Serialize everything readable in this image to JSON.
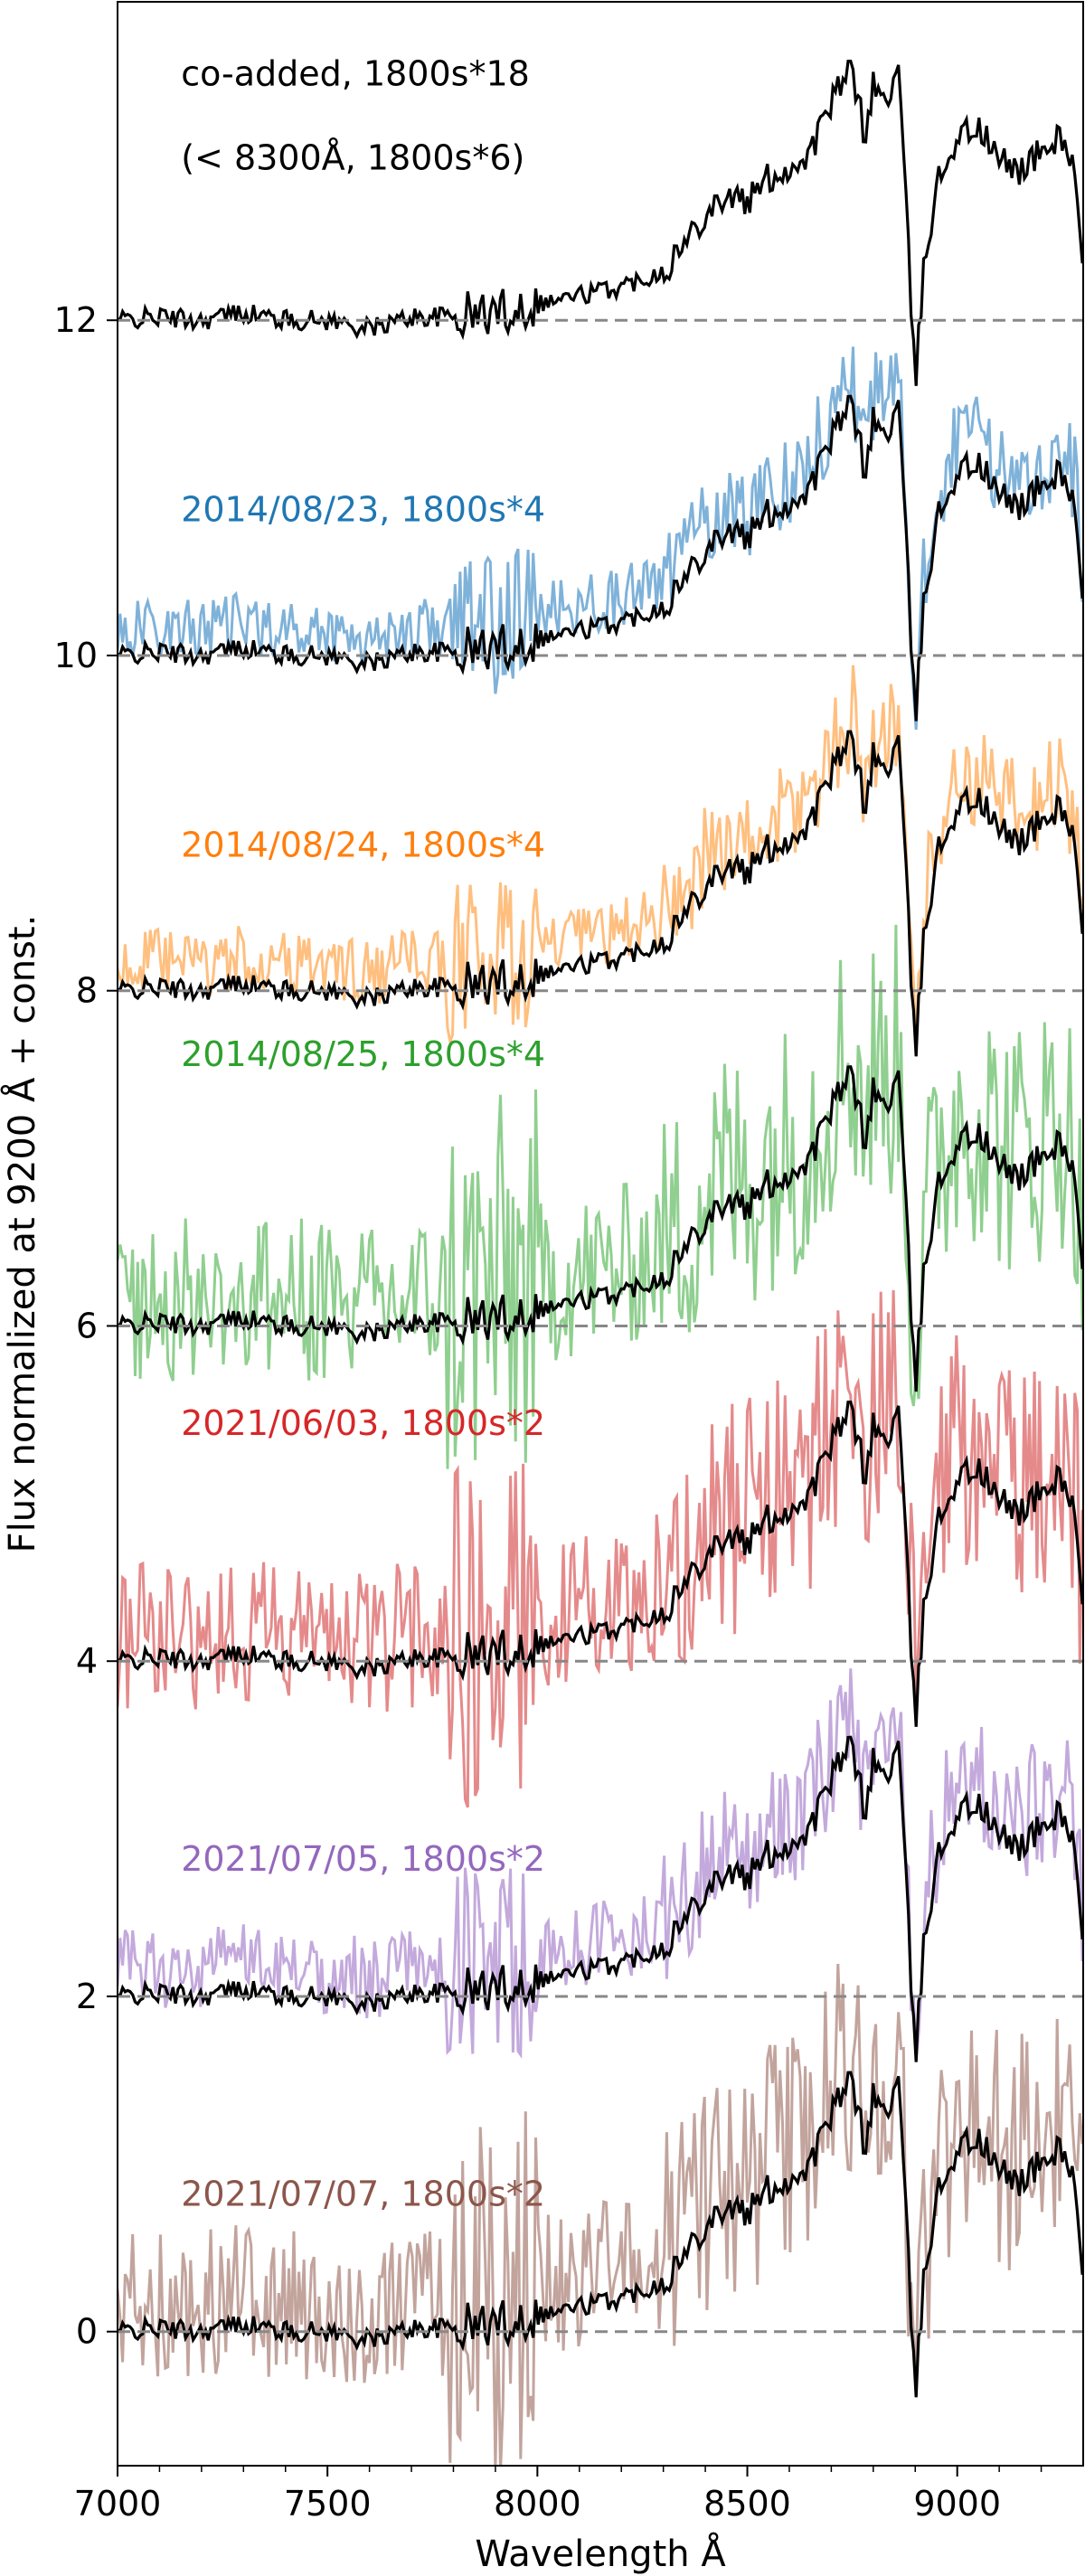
{
  "chart_data": {
    "type": "line",
    "title": "",
    "xlabel": "Wavelength Å",
    "ylabel": "Flux normalized at 9200 Å + const.",
    "xlim": [
      7000,
      9300
    ],
    "ylim": [
      -0.8,
      13.9
    ],
    "x_ticks": [
      7000,
      7500,
      8000,
      8500,
      9000
    ],
    "x_tick_labels": [
      "7000",
      "7500",
      "8000",
      "8500",
      "9000"
    ],
    "y_ticks": [
      0,
      2,
      4,
      6,
      8,
      10,
      12
    ],
    "y_tick_labels": [
      "0",
      "2",
      "4",
      "6",
      "8",
      "10",
      "12"
    ],
    "grid": false,
    "legend": "none",
    "reference_color": "#000000",
    "baseline_color": "#888888",
    "reference_profile": {
      "x": [
        7000,
        7100,
        7200,
        7300,
        7400,
        7500,
        7600,
        7700,
        7800,
        7900,
        8000,
        8100,
        8200,
        8300,
        8350,
        8400,
        8450,
        8500,
        8550,
        8600,
        8650,
        8700,
        8750,
        8780,
        8800,
        8830,
        8860,
        8880,
        8900,
        8920,
        8950,
        9000,
        9050,
        9100,
        9150,
        9200,
        9250,
        9280,
        9300
      ],
      "y": [
        0.0,
        0.02,
        0.0,
        0.05,
        0.0,
        0.0,
        -0.05,
        0.02,
        0.02,
        0.05,
        0.1,
        0.15,
        0.2,
        0.3,
        0.45,
        0.65,
        0.75,
        0.7,
        0.85,
        0.9,
        1.0,
        1.3,
        1.5,
        1.1,
        1.4,
        1.3,
        1.5,
        0.6,
        -0.4,
        0.3,
        0.8,
        1.1,
        1.15,
        0.95,
        0.9,
        1.0,
        1.1,
        0.9,
        0.2
      ]
    },
    "annotations": [
      {
        "text": "co-added, 1800s*18",
        "x": 7050,
        "y": 13.4,
        "color": "#000000"
      },
      {
        "text": "(< 8300Å, 1800s*6)",
        "x": 7050,
        "y": 12.9,
        "color": "#000000"
      }
    ],
    "series": [
      {
        "name": "co-added, 1800s*18",
        "offset": 12,
        "color": "#000000",
        "noise_color": "#000000",
        "label_x": 7050,
        "label_y": 13.4,
        "noise": 0.03
      },
      {
        "name": "2014/08/23, 1800s*4",
        "offset": 10,
        "color": "#1f77b4",
        "noise_color": "#7fb2d9",
        "label_x": 7050,
        "label_y": 10.8,
        "noise": 0.18
      },
      {
        "name": "2014/08/24, 1800s*4",
        "offset": 8,
        "color": "#ff7f0e",
        "noise_color": "#ffbf7f",
        "label_x": 7050,
        "label_y": 8.8,
        "noise": 0.2
      },
      {
        "name": "2014/08/25, 1800s*4",
        "offset": 6,
        "color": "#2ca02c",
        "noise_color": "#8fcf8f",
        "label_x": 7050,
        "label_y": 7.55,
        "noise": 0.5
      },
      {
        "name": "2021/06/03, 1800s*2",
        "offset": 4,
        "color": "#d62728",
        "noise_color": "#e58a8b",
        "label_x": 7050,
        "label_y": 5.35,
        "noise": 0.45
      },
      {
        "name": "2021/07/05, 1800s*2",
        "offset": 2,
        "color": "#9467bd",
        "noise_color": "#c3a9dc",
        "label_x": 7050,
        "label_y": 2.75,
        "noise": 0.25
      },
      {
        "name": "2021/07/07, 1800s*2",
        "offset": 0,
        "color": "#8c564b",
        "noise_color": "#c2a49d",
        "label_x": 7050,
        "label_y": 0.75,
        "noise": 0.45
      }
    ]
  }
}
